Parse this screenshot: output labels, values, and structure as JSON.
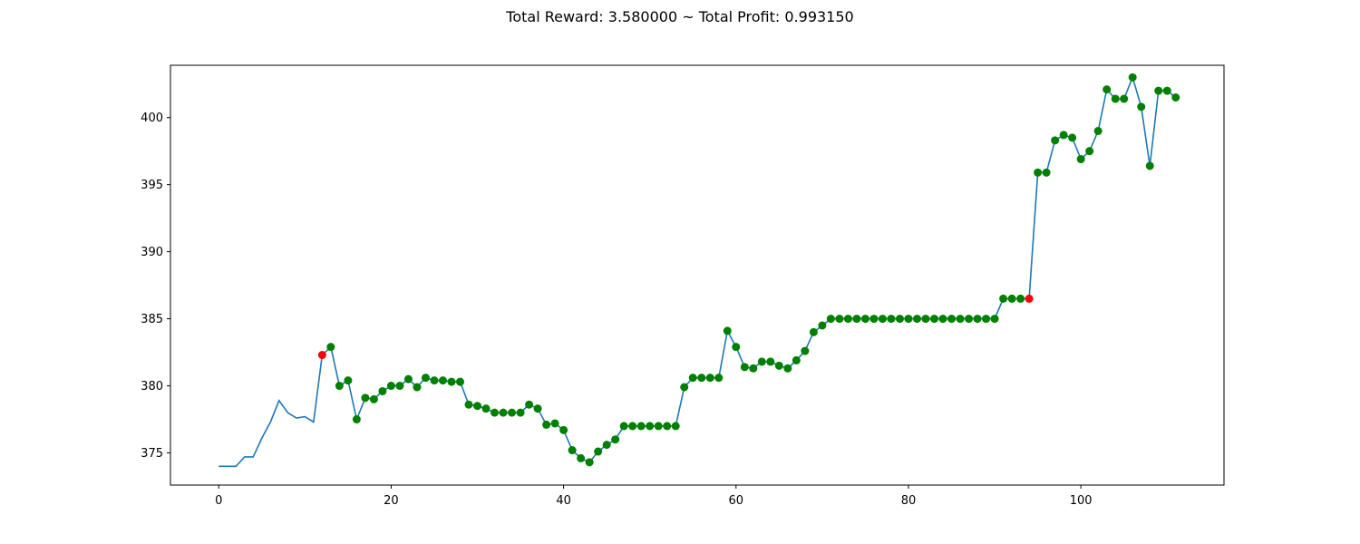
{
  "chart_data": {
    "type": "line",
    "title": "Total Reward: 3.580000 ~ Total Profit: 0.993150",
    "xlabel": "",
    "ylabel": "",
    "xlim": [
      -5.6,
      116.6
    ],
    "ylim": [
      372.6,
      403.9
    ],
    "x_ticks": [
      0,
      20,
      40,
      60,
      80,
      100
    ],
    "y_ticks": [
      375,
      380,
      385,
      390,
      395,
      400
    ],
    "grid": false,
    "line_color": "#1f77b4",
    "long_color": "#008000",
    "short_color": "#ff0000",
    "series": [
      {
        "values": [
          374.0,
          374.0,
          374.0,
          374.7,
          374.7,
          376.1,
          377.3,
          378.9,
          378.0,
          377.6,
          377.7,
          377.3,
          382.3,
          382.9,
          380.0,
          380.4,
          377.5,
          379.1,
          379.0,
          379.6,
          380.0,
          380.0,
          380.5,
          379.9,
          380.6,
          380.4,
          380.4,
          380.3,
          380.3,
          378.6,
          378.5,
          378.3,
          378.0,
          378.0,
          378.0,
          378.0,
          378.6,
          378.3,
          377.1,
          377.2,
          376.7,
          375.2,
          374.6,
          374.3,
          375.1,
          375.6,
          376.0,
          377.0,
          377.0,
          377.0,
          377.0,
          377.0,
          377.0,
          377.0,
          379.9,
          380.6,
          380.6,
          380.6,
          380.6,
          384.1,
          382.9,
          381.4,
          381.3,
          381.8,
          381.8,
          381.5,
          381.3,
          381.9,
          382.6,
          384.0,
          384.5,
          385.0,
          385.0,
          385.0,
          385.0,
          385.0,
          385.0,
          385.0,
          385.0,
          385.0,
          385.0,
          385.0,
          385.0,
          385.0,
          385.0,
          385.0,
          385.0,
          385.0,
          385.0,
          385.0,
          385.0,
          386.5,
          386.5,
          386.5,
          386.5,
          395.9,
          395.9,
          398.3,
          398.7,
          398.5,
          396.9,
          397.5,
          399.0,
          402.1,
          401.4,
          401.4,
          403.0,
          400.8,
          396.4,
          402.0,
          402.0,
          401.5
        ]
      }
    ],
    "short_positions": [
      12,
      94
    ],
    "long_marker_start": 13
  }
}
